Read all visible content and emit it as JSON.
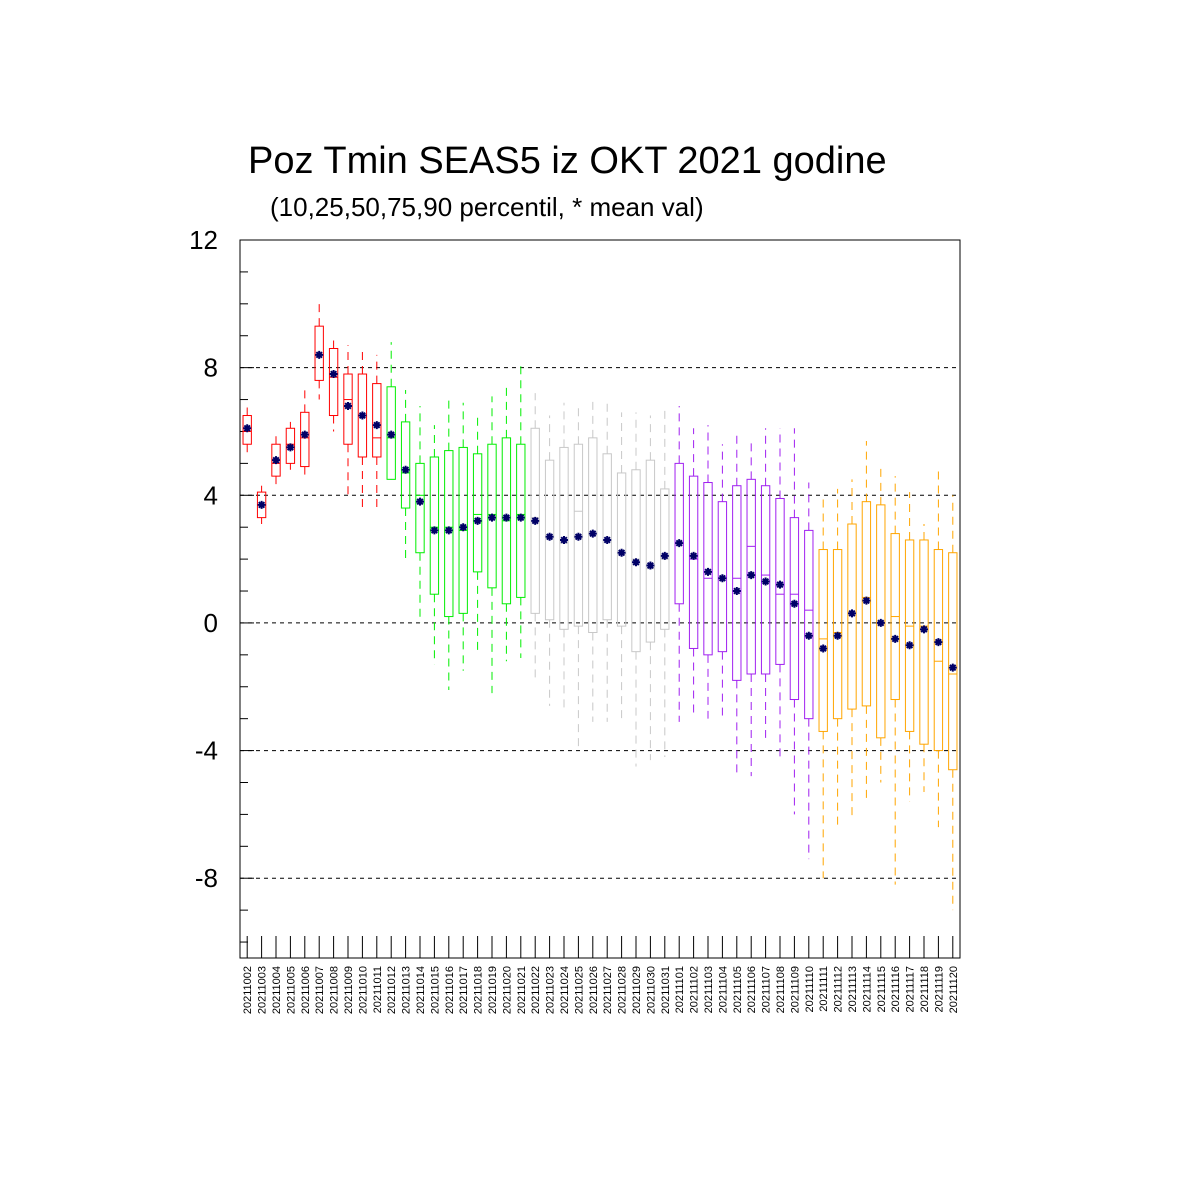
{
  "chart_data": {
    "type": "boxplot",
    "title": "Poz Tmin SEAS5 iz OKT 2021 godine",
    "subtitle": "(10,25,50,75,90 percentil, * mean val)",
    "xlabel": "",
    "ylabel": "",
    "ylim": [
      -10.5,
      12
    ],
    "yticks": [
      -8,
      -4,
      0,
      4,
      8,
      12
    ],
    "grid": "dashed horizontal at major ticks",
    "mean_marker_color": "#000066",
    "categories": [
      "20211002",
      "20211003",
      "20211004",
      "20211005",
      "20211006",
      "20211007",
      "20211008",
      "20211009",
      "20211010",
      "20211011",
      "20211012",
      "20211013",
      "20211014",
      "20211015",
      "20211016",
      "20211017",
      "20211018",
      "20211019",
      "20211020",
      "20211021",
      "20211022",
      "20211023",
      "20211024",
      "20211025",
      "20211026",
      "20211027",
      "20211028",
      "20211029",
      "20211030",
      "20211031",
      "20211101",
      "20211102",
      "20211103",
      "20211104",
      "20211105",
      "20211106",
      "20211107",
      "20211108",
      "20211109",
      "20211110",
      "20211111",
      "20211112",
      "20211113",
      "20211114",
      "20211115",
      "20211116",
      "20211117",
      "20211118",
      "20211119",
      "20211120"
    ],
    "colors": [
      "#ff0000",
      "#ff0000",
      "#ff0000",
      "#ff0000",
      "#ff0000",
      "#ff0000",
      "#ff0000",
      "#ff0000",
      "#ff0000",
      "#ff0000",
      "#00ee00",
      "#00ee00",
      "#00ee00",
      "#00ee00",
      "#00ee00",
      "#00ee00",
      "#00ee00",
      "#00ee00",
      "#00ee00",
      "#00ee00",
      "#c8c8c8",
      "#c8c8c8",
      "#c8c8c8",
      "#c8c8c8",
      "#c8c8c8",
      "#c8c8c8",
      "#c8c8c8",
      "#c8c8c8",
      "#c8c8c8",
      "#c8c8c8",
      "#a020f0",
      "#a020f0",
      "#a020f0",
      "#a020f0",
      "#a020f0",
      "#a020f0",
      "#a020f0",
      "#a020f0",
      "#a020f0",
      "#a020f0",
      "#ffa500",
      "#ffa500",
      "#ffa500",
      "#ffa500",
      "#ffa500",
      "#ffa500",
      "#ffa500",
      "#ffa500",
      "#ffa500",
      "#ffa500"
    ],
    "p10": [
      5.3,
      3.1,
      4.3,
      4.8,
      4.6,
      7.0,
      6.0,
      4.0,
      3.6,
      3.6,
      4.5,
      2.0,
      0.0,
      -1.3,
      -2.1,
      -1.5,
      -0.9,
      -2.2,
      -1.2,
      -1.1,
      -1.8,
      -2.6,
      -2.7,
      -3.9,
      -3.1,
      -3.1,
      -3.0,
      -4.5,
      -4.3,
      -4.2,
      -3.1,
      -2.9,
      -3.0,
      -2.9,
      -4.7,
      -4.8,
      -3.6,
      -4.2,
      -6.0,
      -7.4,
      -8.0,
      -6.5,
      -6.2,
      -5.5,
      -5.0,
      -8.2,
      -5.6,
      -5.3,
      -6.4,
      -9.0
    ],
    "p25": [
      5.6,
      3.3,
      4.6,
      5.0,
      4.9,
      7.6,
      6.5,
      5.6,
      5.2,
      5.2,
      4.5,
      3.6,
      2.2,
      0.9,
      0.2,
      0.3,
      1.6,
      1.1,
      0.6,
      0.8,
      0.3,
      0.1,
      -0.2,
      -0.1,
      -0.3,
      0.1,
      -0.1,
      -0.9,
      -0.6,
      -0.2,
      0.6,
      -0.8,
      -1.0,
      -0.9,
      -1.8,
      -1.6,
      -1.6,
      -1.3,
      -2.4,
      -3.0,
      -3.4,
      -3.0,
      -2.7,
      -2.6,
      -3.6,
      -2.4,
      -3.4,
      -3.8,
      -4.0,
      -4.6
    ],
    "p50": [
      6.0,
      3.7,
      5.0,
      5.6,
      5.8,
      8.4,
      7.7,
      7.0,
      6.5,
      5.8,
      5.8,
      4.7,
      4.0,
      3.0,
      3.0,
      2.9,
      3.4,
      3.4,
      3.2,
      3.4,
      3.3,
      2.7,
      2.5,
      3.5,
      2.8,
      2.6,
      2.2,
      2.0,
      1.7,
      2.0,
      2.5,
      2.0,
      1.4,
      1.4,
      1.4,
      2.4,
      1.5,
      0.9,
      0.9,
      0.4,
      -0.5,
      -0.3,
      0.3,
      0.8,
      0.0,
      0.2,
      -0.1,
      -0.1,
      -1.2,
      -1.6
    ],
    "p75": [
      6.5,
      4.1,
      5.6,
      6.1,
      6.6,
      9.3,
      8.6,
      7.8,
      7.8,
      7.5,
      7.4,
      6.3,
      5.0,
      5.2,
      5.4,
      5.5,
      5.3,
      5.6,
      5.8,
      5.6,
      6.1,
      5.1,
      5.5,
      5.6,
      5.8,
      5.3,
      4.7,
      4.8,
      5.1,
      4.2,
      5.0,
      4.6,
      4.4,
      3.8,
      4.3,
      4.5,
      4.3,
      3.9,
      3.3,
      2.9,
      2.3,
      2.3,
      3.1,
      3.8,
      3.7,
      2.8,
      2.6,
      2.6,
      2.3,
      2.2
    ],
    "p90": [
      6.8,
      4.3,
      5.9,
      6.3,
      7.3,
      10.0,
      9.0,
      8.7,
      8.6,
      8.4,
      8.8,
      7.3,
      6.8,
      6.2,
      7.1,
      6.9,
      6.6,
      7.1,
      7.4,
      8.1,
      7.2,
      6.5,
      6.9,
      6.9,
      7.1,
      7.0,
      6.6,
      6.6,
      6.5,
      6.8,
      6.8,
      6.1,
      6.2,
      5.6,
      5.9,
      5.7,
      6.1,
      6.1,
      6.1,
      4.4,
      4.0,
      4.2,
      4.5,
      5.7,
      5.0,
      4.6,
      4.1,
      3.1,
      4.9,
      4.0
    ],
    "mean": [
      6.1,
      3.7,
      5.1,
      5.5,
      5.9,
      8.4,
      7.8,
      6.8,
      6.5,
      6.2,
      5.9,
      4.8,
      3.8,
      2.9,
      2.9,
      3.0,
      3.2,
      3.3,
      3.3,
      3.3,
      3.2,
      2.7,
      2.6,
      2.7,
      2.8,
      2.6,
      2.2,
      1.9,
      1.8,
      2.1,
      2.5,
      2.1,
      1.6,
      1.4,
      1.0,
      1.5,
      1.3,
      1.2,
      0.6,
      -0.4,
      -0.8,
      -0.4,
      0.3,
      0.7,
      0.0,
      -0.5,
      -0.7,
      -0.2,
      -0.6,
      -1.4
    ]
  }
}
